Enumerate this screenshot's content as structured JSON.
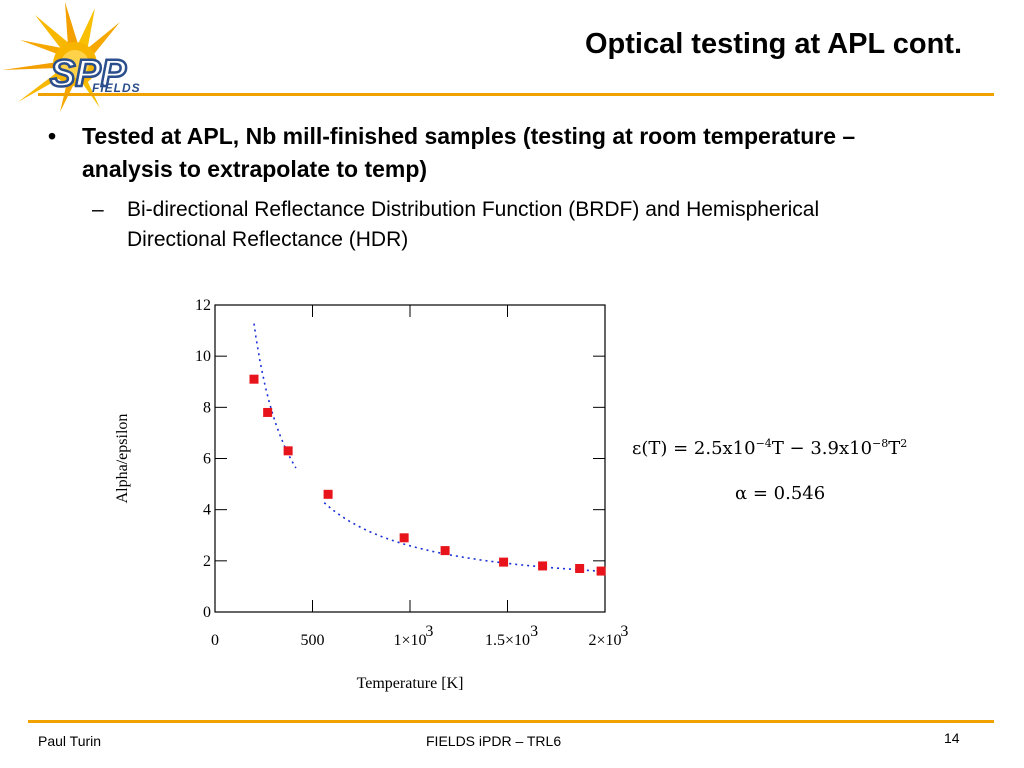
{
  "header": {
    "title": "Optical testing at APL cont.",
    "logo_text": "SPP",
    "logo_subtext": "FIELDS"
  },
  "content": {
    "bullet1": "Tested at APL, Nb mill-finished samples (testing at room temperature – analysis to extrapolate to temp)",
    "bullet1_marker": "•",
    "bullet2": "Bi-directional Reflectance Distribution Function (BRDF) and Hemispherical Directional Reflectance (HDR)",
    "bullet2_marker": "–"
  },
  "formulas": {
    "epsilon_lhs": "ε(T) = 2.5x10",
    "epsilon_exp1": "−4",
    "epsilon_mid": "T − 3.9x10",
    "epsilon_exp2": "−8",
    "epsilon_end": "T",
    "epsilon_exp3": "2",
    "alpha": "α = 0.546"
  },
  "chart_data": {
    "type": "scatter",
    "xlabel": "Temperature   [K]",
    "ylabel": "Alpha/epsilon",
    "xlim": [
      0,
      2000
    ],
    "ylim": [
      0,
      12
    ],
    "x_ticks": [
      0,
      500,
      1000,
      1500,
      2000
    ],
    "x_tick_labels": [
      "0",
      "500",
      "1×10",
      "1.5×10",
      "2×10"
    ],
    "x_tick_exponents": [
      "",
      "",
      "3",
      "3",
      "3"
    ],
    "y_ticks": [
      0,
      2,
      4,
      6,
      8,
      10,
      12
    ],
    "y_tick_labels": [
      "0",
      "2",
      "4",
      "6",
      "8",
      "10",
      "12"
    ],
    "series": [
      {
        "kind": "points",
        "color": "#e8141c",
        "x": [
          200,
          270,
          375,
          580,
          970,
          1180,
          1480,
          1680,
          1870,
          1980
        ],
        "y": [
          9.1,
          7.8,
          6.3,
          4.6,
          2.9,
          2.4,
          1.95,
          1.8,
          1.7,
          1.6
        ]
      },
      {
        "kind": "fit-curve",
        "color": "#1a2fd6",
        "formula": "alpha / (2.5e-4*T - 3.9e-8*T^2)",
        "alpha": 0.546
      }
    ],
    "grid": false
  },
  "footer": {
    "author": "Paul Turin",
    "center": "FIELDS iPDR – TRL6",
    "page": "14"
  },
  "colors": {
    "accent": "#f0a300",
    "logo_blue": "#2b4e8c",
    "points": "#e8141c",
    "curve": "#1a2fd6"
  }
}
